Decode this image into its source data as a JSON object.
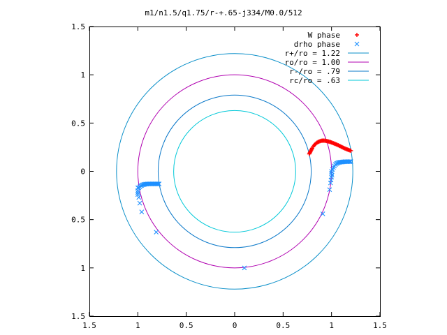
{
  "chart_data": {
    "type": "scatter",
    "title": "m1/n1.5/q1.75/r-+.65-j334/M0.0/512",
    "xlim": [
      -1.5,
      1.5
    ],
    "ylim": [
      -1.5,
      1.5
    ],
    "x_ticks": [
      {
        "value": -1.5,
        "label": "1.5"
      },
      {
        "value": -1.0,
        "label": "1"
      },
      {
        "value": -0.5,
        "label": "0.5"
      },
      {
        "value": 0.0,
        "label": "0"
      },
      {
        "value": 0.5,
        "label": "0.5"
      },
      {
        "value": 1.0,
        "label": "1"
      },
      {
        "value": 1.5,
        "label": "1.5"
      }
    ],
    "y_ticks": [
      {
        "value": 1.5,
        "label": "1.5"
      },
      {
        "value": 1.0,
        "label": "1"
      },
      {
        "value": 0.5,
        "label": "0.5"
      },
      {
        "value": 0.0,
        "label": "0"
      },
      {
        "value": -0.5,
        "label": "0.5"
      },
      {
        "value": -1.0,
        "label": "1"
      },
      {
        "value": -1.5,
        "label": "1.5"
      }
    ],
    "grid": false,
    "legend_position": "top-right",
    "series": [
      {
        "name": "W phase",
        "kind": "points",
        "marker": "plus",
        "color": "#ff0000",
        "points": [
          [
            0.77,
            0.18
          ],
          [
            0.775,
            0.19
          ],
          [
            0.78,
            0.2
          ],
          [
            0.785,
            0.21
          ],
          [
            0.79,
            0.22
          ],
          [
            0.795,
            0.23
          ],
          [
            0.8,
            0.24
          ],
          [
            0.81,
            0.255
          ],
          [
            0.82,
            0.27
          ],
          [
            0.83,
            0.28
          ],
          [
            0.84,
            0.29
          ],
          [
            0.85,
            0.297
          ],
          [
            0.86,
            0.303
          ],
          [
            0.87,
            0.308
          ],
          [
            0.88,
            0.312
          ],
          [
            0.89,
            0.315
          ],
          [
            0.9,
            0.317
          ],
          [
            0.91,
            0.318
          ],
          [
            0.92,
            0.318
          ],
          [
            0.93,
            0.317
          ],
          [
            0.94,
            0.316
          ],
          [
            0.95,
            0.314
          ],
          [
            0.96,
            0.312
          ],
          [
            0.97,
            0.309
          ],
          [
            0.98,
            0.306
          ],
          [
            0.99,
            0.303
          ],
          [
            1.0,
            0.299
          ],
          [
            1.01,
            0.295
          ],
          [
            1.02,
            0.291
          ],
          [
            1.03,
            0.287
          ],
          [
            1.04,
            0.283
          ],
          [
            1.05,
            0.279
          ],
          [
            1.06,
            0.274
          ],
          [
            1.07,
            0.27
          ],
          [
            1.08,
            0.265
          ],
          [
            1.09,
            0.26
          ],
          [
            1.1,
            0.255
          ],
          [
            1.11,
            0.25
          ],
          [
            1.12,
            0.245
          ],
          [
            1.13,
            0.24
          ],
          [
            1.14,
            0.236
          ],
          [
            1.15,
            0.232
          ],
          [
            1.16,
            0.228
          ],
          [
            1.17,
            0.224
          ],
          [
            1.18,
            0.22
          ],
          [
            1.19,
            0.217
          ],
          [
            1.2,
            0.214
          ]
        ]
      },
      {
        "name": "drho phase",
        "kind": "points",
        "marker": "cross",
        "color": "#1e90ff",
        "points": [
          [
            1.0,
            0.0
          ],
          [
            1.01,
            0.02
          ],
          [
            1.02,
            0.04
          ],
          [
            1.03,
            0.055
          ],
          [
            1.04,
            0.07
          ],
          [
            1.05,
            0.08
          ],
          [
            1.06,
            0.085
          ],
          [
            1.07,
            0.09
          ],
          [
            1.08,
            0.093
          ],
          [
            1.09,
            0.095
          ],
          [
            1.1,
            0.096
          ],
          [
            1.11,
            0.097
          ],
          [
            1.12,
            0.098
          ],
          [
            1.13,
            0.099
          ],
          [
            1.14,
            0.1
          ],
          [
            1.15,
            0.1
          ],
          [
            1.16,
            0.1
          ],
          [
            1.17,
            0.1
          ],
          [
            1.18,
            0.1
          ],
          [
            1.19,
            0.1
          ],
          [
            1.2,
            0.1
          ],
          [
            1.0,
            -0.02
          ],
          [
            1.005,
            -0.04
          ],
          [
            1.0,
            -0.06
          ],
          [
            0.995,
            -0.09
          ],
          [
            0.99,
            -0.12
          ],
          [
            0.98,
            -0.19
          ],
          [
            0.91,
            -0.44
          ],
          [
            0.1,
            -1.0
          ],
          [
            -1.0,
            -0.17
          ],
          [
            -1.0,
            -0.2
          ],
          [
            -1.0,
            -0.22
          ],
          [
            -1.0,
            -0.24
          ],
          [
            -0.99,
            -0.27
          ],
          [
            -0.98,
            -0.33
          ],
          [
            -0.96,
            -0.42
          ],
          [
            -0.81,
            -0.63
          ],
          [
            -0.99,
            -0.17
          ],
          [
            -0.98,
            -0.16
          ],
          [
            -0.97,
            -0.15
          ],
          [
            -0.96,
            -0.145
          ],
          [
            -0.95,
            -0.14
          ],
          [
            -0.94,
            -0.137
          ],
          [
            -0.93,
            -0.135
          ],
          [
            -0.92,
            -0.133
          ],
          [
            -0.91,
            -0.132
          ],
          [
            -0.9,
            -0.131
          ],
          [
            -0.89,
            -0.13
          ],
          [
            -0.88,
            -0.13
          ],
          [
            -0.87,
            -0.13
          ],
          [
            -0.86,
            -0.13
          ],
          [
            -0.85,
            -0.13
          ],
          [
            -0.84,
            -0.13
          ],
          [
            -0.83,
            -0.13
          ],
          [
            -0.82,
            -0.13
          ],
          [
            -0.81,
            -0.13
          ],
          [
            -0.8,
            -0.13
          ],
          [
            -0.79,
            -0.13
          ],
          [
            -0.78,
            -0.13
          ]
        ]
      },
      {
        "name": "r+/ro = 1.22",
        "kind": "circle",
        "radius": 1.22,
        "color": "#0a8fc9"
      },
      {
        "name": "ro/ro = 1.00",
        "kind": "circle",
        "radius": 1.0,
        "color": "#b000b0"
      },
      {
        "name": "r-/ro = .79",
        "kind": "circle",
        "radius": 0.79,
        "color": "#0a78c9"
      },
      {
        "name": "rc/ro = .63",
        "kind": "circle",
        "radius": 0.63,
        "color": "#00c8d8"
      }
    ]
  }
}
